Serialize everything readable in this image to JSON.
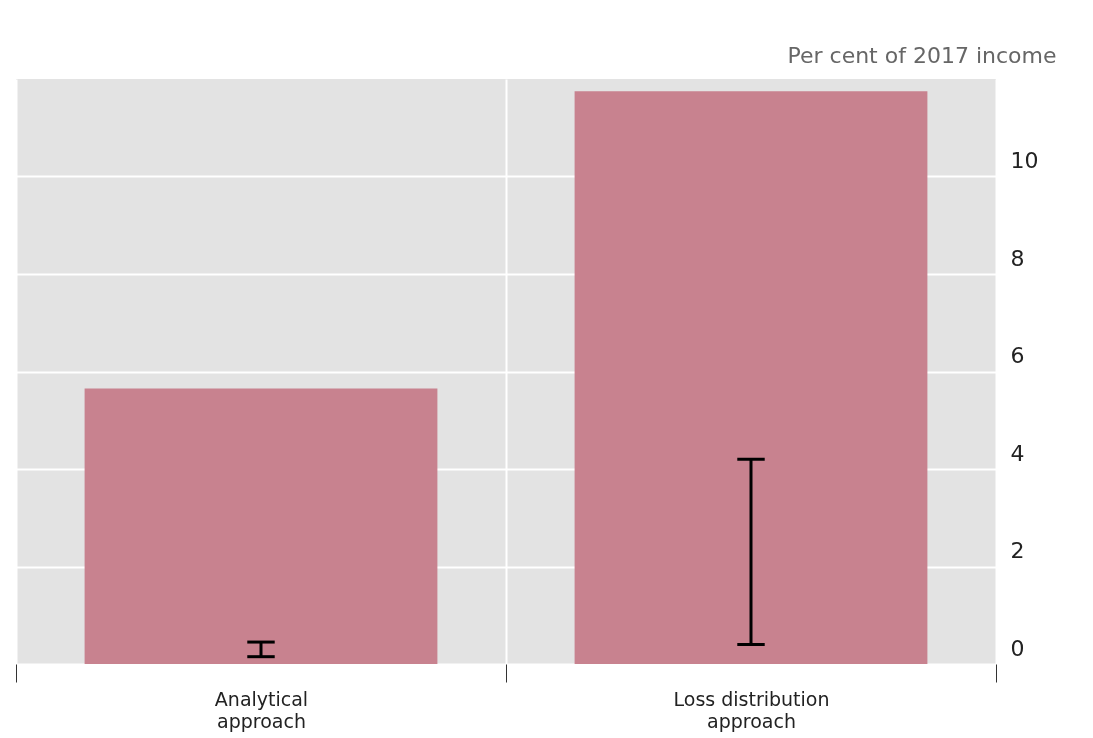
{
  "chart_data": {
    "type": "bar",
    "ylabel": "Per cent of 2017 income",
    "categories": [
      "Analytical approach",
      "Loss distribution approach"
    ],
    "values": [
      5.65,
      11.75
    ],
    "errors": [
      [
        0.15,
        0.45
      ],
      [
        0.4,
        4.2
      ]
    ],
    "color": "#c8828f",
    "ylim": [
      0,
      12
    ],
    "yticks": [
      0,
      2,
      4,
      6,
      8,
      10
    ],
    "grid": true
  }
}
